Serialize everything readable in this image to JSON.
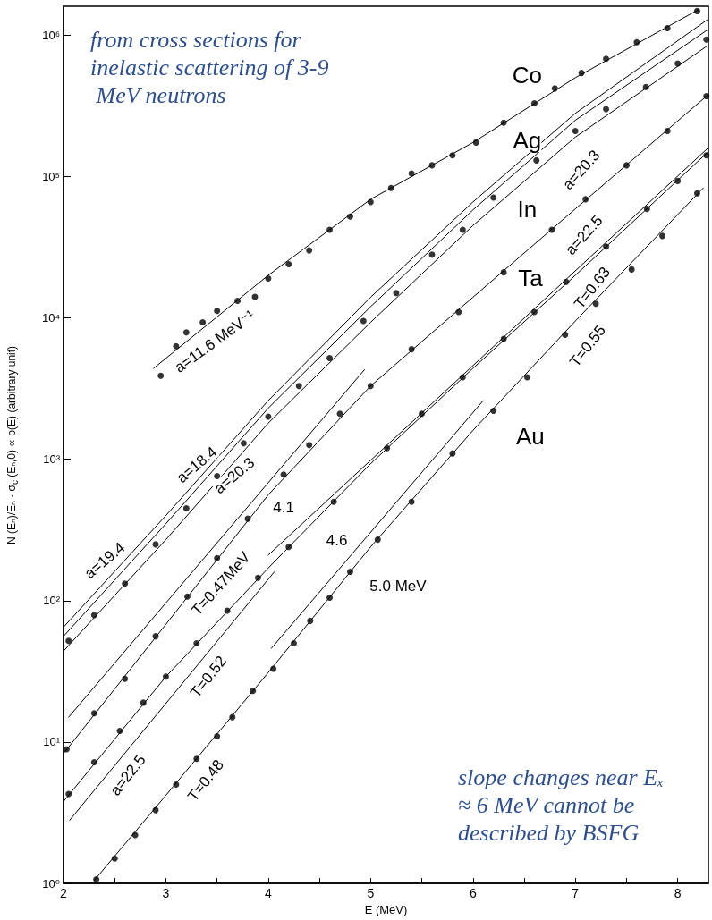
{
  "chart_data": {
    "type": "scatter",
    "xlabel": "E (MeV)",
    "ylabel": "N (Eₙ)/Eₙ · σ$_{c}$ (Eₙ,0) ∝ ρ(E) (arbitrary unit)",
    "xlim": [
      2,
      8.3
    ],
    "ylim": [
      1,
      1600000
    ],
    "log": "y",
    "grid": false,
    "xticks": [
      2,
      {
        "value": 2.5,
        "label": null
      },
      3,
      {
        "value": 3.5,
        "label": null
      },
      4,
      {
        "value": 4.5,
        "label": null
      },
      5,
      {
        "value": 5.5,
        "label": null
      },
      6,
      {
        "value": 6.5,
        "label": null
      },
      7,
      {
        "value": 7.5,
        "label": null
      },
      8
    ],
    "yticks": [
      {
        "value": 1,
        "label": "10⁰"
      },
      {
        "value": 10,
        "label": "10¹"
      },
      {
        "value": 100,
        "label": "10²"
      },
      {
        "value": 1000,
        "label": "10³"
      },
      {
        "value": 10000,
        "label": "10⁴"
      },
      {
        "value": 100000,
        "label": "10⁵"
      },
      {
        "value": 1000000,
        "label": "10⁶"
      }
    ],
    "series": [
      {
        "type": "scatter",
        "marker": "circle",
        "color": "#000000",
        "x": [
          2.95,
          3.1,
          3.2,
          3.36,
          3.5,
          3.7,
          3.87,
          4.0,
          4.2,
          4.4,
          4.6,
          4.8,
          5.0,
          5.2,
          5.4,
          5.6,
          5.8,
          6.03,
          6.3,
          6.6,
          6.8,
          7.06,
          7.3,
          7.6,
          7.9,
          8.19
        ],
        "values": [
          3900,
          6300,
          7900,
          9300,
          11200,
          13200,
          14100,
          19000,
          24000,
          30000,
          42000,
          52000,
          66000,
          83000,
          105000,
          120000,
          141000,
          174000,
          240000,
          330000,
          420000,
          540000,
          680000,
          890000,
          1120000,
          1480000
        ]
      },
      {
        "type": "scatter",
        "marker": "circle",
        "color": "#000000",
        "x": [
          2.05,
          2.3,
          2.6,
          2.9,
          3.2,
          3.5,
          3.76,
          4.0,
          4.3,
          4.6,
          4.93,
          5.25,
          5.6,
          5.9,
          6.2,
          6.62,
          7.0,
          7.3,
          7.69,
          8.0,
          8.28
        ],
        "values": [
          52,
          79,
          132,
          250,
          450,
          760,
          1300,
          2000,
          3300,
          5200,
          9500,
          15000,
          28000,
          42000,
          71000,
          130000,
          210000,
          300000,
          430000,
          630000,
          930000
        ]
      },
      {
        "type": "scatter",
        "marker": "circle",
        "color": "#000000",
        "x": [
          2.03,
          2.3,
          2.6,
          2.9,
          3.21,
          3.5,
          3.8,
          4.15,
          4.4,
          4.7,
          5.0,
          5.4,
          5.86,
          6.3,
          6.77,
          7.1,
          7.5,
          7.9,
          8.28
        ],
        "values": [
          8.9,
          16,
          28,
          56,
          107,
          200,
          380,
          780,
          1260,
          2100,
          3300,
          6000,
          11000,
          21000,
          42000,
          69000,
          120000,
          210000,
          370000
        ]
      },
      {
        "type": "scatter",
        "marker": "circle",
        "color": "#000000",
        "x": [
          2.05,
          2.3,
          2.55,
          2.78,
          3.0,
          3.3,
          3.6,
          3.9,
          4.2,
          4.64,
          5.16,
          5.5,
          5.9,
          6.3,
          6.6,
          6.91,
          7.3,
          7.7,
          8.0,
          8.28
        ],
        "values": [
          4.3,
          7.2,
          12,
          19,
          29,
          50,
          85,
          145,
          240,
          500,
          1200,
          2100,
          3800,
          7100,
          11000,
          18000,
          32000,
          59000,
          93000,
          141000
        ]
      },
      {
        "type": "scatter",
        "marker": "circle",
        "color": "#000000",
        "x": [
          2.32,
          2.5,
          2.7,
          2.9,
          3.1,
          3.3,
          3.5,
          3.65,
          3.85,
          4.05,
          4.25,
          4.41,
          4.6,
          4.8,
          5.07,
          5.4,
          5.8,
          6.2,
          6.53,
          6.9,
          7.2,
          7.55,
          7.85,
          8.19
        ],
        "values": [
          1.07,
          1.5,
          2.2,
          3.3,
          5.0,
          7.6,
          11,
          15,
          23,
          33,
          50,
          72,
          105,
          160,
          270,
          500,
          1100,
          2200,
          3800,
          7600,
          12600,
          22000,
          38000,
          76000
        ]
      },
      {
        "type": "line",
        "marker": "none",
        "line_style": "solid",
        "color": "#000000",
        "x": [
          2.88,
          4,
          5,
          6,
          7,
          8.2
        ],
        "values": [
          4400,
          20000,
          69000,
          174000,
          500000,
          1510000
        ]
      },
      {
        "type": "line",
        "marker": "none",
        "line_style": "solid",
        "color": "#000000",
        "x": [
          2.0,
          3,
          4,
          5,
          6,
          7,
          8.3
        ],
        "values": [
          65,
          400,
          2600,
          14000,
          66000,
          280000,
          1300000
        ]
      },
      {
        "type": "line",
        "marker": "none",
        "line_style": "solid",
        "color": "#000000",
        "x": [
          2.0,
          3,
          4,
          5,
          6,
          7,
          8.3
        ],
        "values": [
          56,
          350,
          2300,
          12000,
          58000,
          250000,
          1100000
        ]
      },
      {
        "type": "line",
        "marker": "none",
        "line_style": "solid",
        "color": "#000000",
        "x": [
          2.0,
          3,
          4,
          5,
          6,
          7,
          8.3
        ],
        "values": [
          44,
          270,
          1800,
          9300,
          45000,
          190000,
          850000
        ]
      },
      {
        "type": "line",
        "marker": "none",
        "line_style": "solid",
        "color": "#000000",
        "x": [
          2.0,
          3,
          4,
          5,
          6,
          7,
          8.3
        ],
        "values": [
          8.3,
          68,
          560,
          3300,
          14000,
          59000,
          380000
        ]
      },
      {
        "type": "line",
        "marker": "none",
        "line_style": "solid",
        "color": "#000000",
        "x": [
          2.05,
          4.94
        ],
        "values": [
          15,
          4300
        ]
      },
      {
        "type": "line",
        "marker": "none",
        "line_style": "solid",
        "color": "#000000",
        "x": [
          2.0,
          3,
          4,
          5,
          6,
          7,
          8.3
        ],
        "values": [
          3.8,
          29,
          170,
          930,
          4400,
          20000,
          150000
        ]
      },
      {
        "type": "line",
        "marker": "none",
        "line_style": "solid",
        "color": "#000000",
        "x": [
          2.06,
          4.06
        ],
        "values": [
          2.8,
          160
        ]
      },
      {
        "type": "line",
        "marker": "none",
        "line_style": "solid",
        "color": "#000000",
        "x": [
          4.0,
          8.3
        ],
        "values": [
          210,
          160000
        ]
      },
      {
        "type": "line",
        "marker": "none",
        "line_style": "solid",
        "color": "#000000",
        "x": [
          2.3,
          3,
          4,
          5,
          6,
          7,
          8.25
        ],
        "values": [
          1.05,
          4.2,
          31,
          240,
          1600,
          9500,
          83000
        ]
      },
      {
        "type": "line",
        "marker": "none",
        "line_style": "solid",
        "color": "#000000",
        "x": [
          4.03,
          6.1
        ],
        "values": [
          46,
          2600
        ]
      }
    ],
    "annotations": [
      "from cross sections for inelastic scattering of 3-9 MeV neutrons",
      "slope changes near Eₓ≈ 6 MeV cannot be described by BSFG",
      {
        "text": "Co",
        "x": 6.53,
        "y": 520000
      },
      {
        "text": "Ag",
        "x": 6.53,
        "y": 180000
      },
      {
        "text": "In",
        "x": 6.53,
        "y": 59000
      },
      {
        "text": "Ta",
        "x": 6.56,
        "y": 19000
      },
      {
        "text": "Au",
        "x": 6.56,
        "y": 1450
      },
      {
        "text": "4.1",
        "x": 4.15,
        "y": 455
      },
      {
        "text": "4.6",
        "x": 4.67,
        "y": 265
      },
      "a=11.6 MeV⁻¹",
      "a=19.4",
      "a=18.4",
      "a=20.3",
      "T=0.47MeV",
      "5.0 MeV",
      "a=20.3",
      "a=22.5",
      "T=0.63",
      "T=0.55",
      "T=0.52",
      "a=22.5",
      "T=0.48"
    ]
  }
}
